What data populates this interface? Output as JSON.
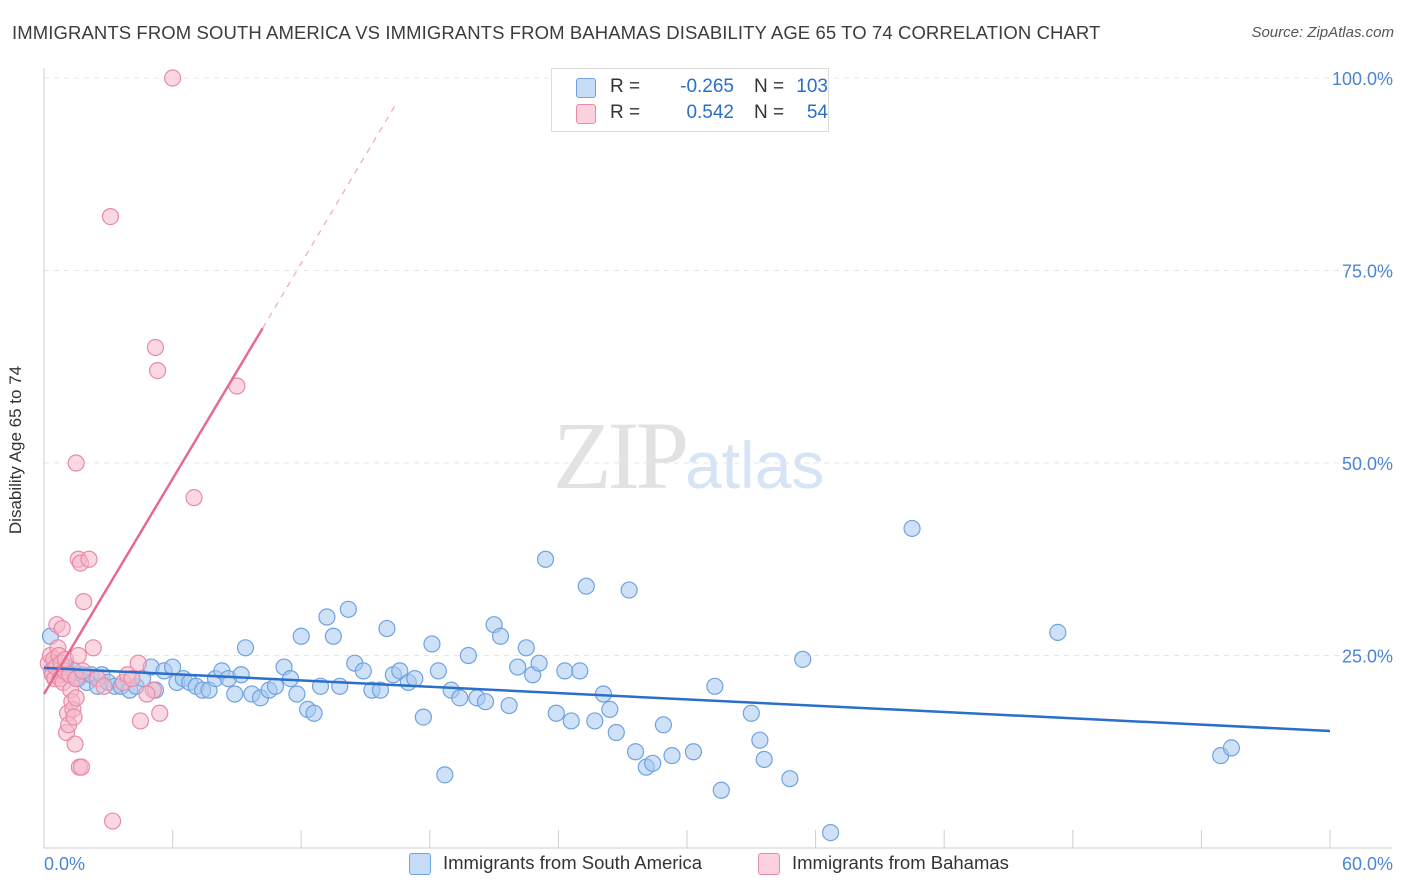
{
  "title": "IMMIGRANTS FROM SOUTH AMERICA VS IMMIGRANTS FROM BAHAMAS DISABILITY AGE 65 TO 74 CORRELATION CHART",
  "source": "Source: ZipAtlas.com",
  "watermark": {
    "zip": "ZIP",
    "atlas": "atlas"
  },
  "legend": {
    "rows": [
      {
        "r_label": "R =",
        "r_value": "-0.265",
        "n_label": "N =",
        "n_value": "103",
        "color": "#a8c8f0"
      },
      {
        "r_label": "R =",
        "r_value": "0.542",
        "n_label": "N =",
        "n_value": "54",
        "color": "#f5b8c8"
      }
    ]
  },
  "bottom_legend": [
    {
      "label": "Immigrants from South America",
      "color": "#a8c8f0"
    },
    {
      "label": "Immigrants from Bahamas",
      "color": "#f5b8c8"
    }
  ],
  "chart_data": {
    "type": "scatter",
    "title": "IMMIGRANTS FROM SOUTH AMERICA VS IMMIGRANTS FROM BAHAMAS DISABILITY AGE 65 TO 74 CORRELATION CHART",
    "xlabel": "",
    "ylabel": "Disability Age 65 to 74",
    "xlim": [
      0,
      60
    ],
    "ylim": [
      0,
      100
    ],
    "x_tick_labels": [
      "0.0%",
      "60.0%"
    ],
    "y_tick_labels": [
      "25.0%",
      "50.0%",
      "75.0%",
      "100.0%"
    ],
    "y_ticks": [
      25,
      50,
      75,
      100
    ],
    "grid": true,
    "series": [
      {
        "name": "Immigrants from South America",
        "color": "#6fa3e0",
        "fill": "#a8c8f0",
        "trend": {
          "x": [
            0,
            60
          ],
          "y": [
            23.4,
            15.2
          ],
          "color": "#2a6fc9"
        },
        "points": [
          [
            0.3,
            27.5
          ],
          [
            0.5,
            24
          ],
          [
            0.8,
            22.5
          ],
          [
            1,
            23.5
          ],
          [
            1.2,
            22.5
          ],
          [
            1.4,
            23
          ],
          [
            1.6,
            22
          ],
          [
            1.8,
            22.5
          ],
          [
            2,
            21.5
          ],
          [
            2.2,
            22.5
          ],
          [
            2.5,
            21
          ],
          [
            2.7,
            22.5
          ],
          [
            3,
            21.5
          ],
          [
            3.3,
            21
          ],
          [
            3.6,
            21
          ],
          [
            4,
            20.5
          ],
          [
            4.3,
            21
          ],
          [
            4.6,
            22
          ],
          [
            5,
            23.5
          ],
          [
            5.2,
            20.5
          ],
          [
            5.6,
            23
          ],
          [
            6,
            23.5
          ],
          [
            6.2,
            21.5
          ],
          [
            6.5,
            22
          ],
          [
            6.8,
            21.5
          ],
          [
            7.1,
            21
          ],
          [
            7.4,
            20.5
          ],
          [
            7.7,
            20.5
          ],
          [
            8,
            22
          ],
          [
            8.3,
            23
          ],
          [
            8.6,
            22
          ],
          [
            8.9,
            20
          ],
          [
            9.2,
            22.5
          ],
          [
            9.4,
            26
          ],
          [
            9.7,
            20
          ],
          [
            10.1,
            19.5
          ],
          [
            10.5,
            20.5
          ],
          [
            10.8,
            21
          ],
          [
            11.2,
            23.5
          ],
          [
            11.5,
            22
          ],
          [
            11.8,
            20
          ],
          [
            12,
            27.5
          ],
          [
            12.3,
            18
          ],
          [
            12.6,
            17.5
          ],
          [
            12.9,
            21
          ],
          [
            13.2,
            30
          ],
          [
            13.5,
            27.5
          ],
          [
            13.8,
            21
          ],
          [
            14.2,
            31
          ],
          [
            14.5,
            24
          ],
          [
            14.9,
            23
          ],
          [
            15.3,
            20.5
          ],
          [
            15.7,
            20.5
          ],
          [
            16,
            28.5
          ],
          [
            16.3,
            22.5
          ],
          [
            16.6,
            23
          ],
          [
            17,
            21.5
          ],
          [
            17.3,
            22
          ],
          [
            17.7,
            17
          ],
          [
            18.1,
            26.5
          ],
          [
            18.4,
            23
          ],
          [
            18.7,
            9.5
          ],
          [
            19,
            20.5
          ],
          [
            19.4,
            19.5
          ],
          [
            19.8,
            25
          ],
          [
            20.2,
            19.5
          ],
          [
            20.6,
            19
          ],
          [
            21,
            29
          ],
          [
            21.3,
            27.5
          ],
          [
            21.7,
            18.5
          ],
          [
            22.1,
            23.5
          ],
          [
            22.5,
            26
          ],
          [
            22.8,
            22.5
          ],
          [
            23.1,
            24
          ],
          [
            23.4,
            37.5
          ],
          [
            23.9,
            17.5
          ],
          [
            24.3,
            23
          ],
          [
            24.6,
            16.5
          ],
          [
            25,
            23
          ],
          [
            25.3,
            34
          ],
          [
            25.7,
            16.5
          ],
          [
            26.1,
            20
          ],
          [
            26.4,
            18
          ],
          [
            26.7,
            15
          ],
          [
            27.3,
            33.5
          ],
          [
            27.6,
            12.5
          ],
          [
            28.1,
            10.5
          ],
          [
            28.4,
            11
          ],
          [
            28.9,
            16
          ],
          [
            29.3,
            12
          ],
          [
            30.3,
            12.5
          ],
          [
            31.3,
            21
          ],
          [
            31.6,
            7.5
          ],
          [
            33,
            17.5
          ],
          [
            33.4,
            14
          ],
          [
            33.6,
            11.5
          ],
          [
            34.8,
            9
          ],
          [
            35.4,
            24.5
          ],
          [
            36.7,
            2
          ],
          [
            40.5,
            41.5
          ],
          [
            47.3,
            28
          ],
          [
            54.9,
            12
          ],
          [
            55.4,
            13
          ]
        ]
      },
      {
        "name": "Immigrants from Bahamas",
        "color": "#e98aa6",
        "fill": "#f5b8c8",
        "trend": {
          "x": [
            0,
            10.2
          ],
          "y": [
            20,
            67.5
          ],
          "color": "#e46b94",
          "dashed_to": {
            "x": 16.5,
            "y": 97
          }
        },
        "points": [
          [
            0.2,
            24
          ],
          [
            0.3,
            25
          ],
          [
            0.35,
            23
          ],
          [
            0.4,
            22.5
          ],
          [
            0.45,
            24.5
          ],
          [
            0.5,
            22
          ],
          [
            0.55,
            23.5
          ],
          [
            0.6,
            29
          ],
          [
            0.65,
            26
          ],
          [
            0.7,
            25
          ],
          [
            0.75,
            22
          ],
          [
            0.8,
            24
          ],
          [
            0.85,
            28.5
          ],
          [
            0.9,
            21.5
          ],
          [
            0.95,
            23
          ],
          [
            1,
            24.5
          ],
          [
            1.05,
            15
          ],
          [
            1.1,
            17.5
          ],
          [
            1.15,
            16
          ],
          [
            1.2,
            22.5
          ],
          [
            1.25,
            20.5
          ],
          [
            1.3,
            19
          ],
          [
            1.35,
            18
          ],
          [
            1.4,
            17
          ],
          [
            1.45,
            13.5
          ],
          [
            1.5,
            19.5
          ],
          [
            1.5,
            22
          ],
          [
            1.6,
            25
          ],
          [
            1.65,
            10.5
          ],
          [
            1.75,
            10.5
          ],
          [
            1.5,
            50
          ],
          [
            1.6,
            37.5
          ],
          [
            1.7,
            37
          ],
          [
            1.8,
            23
          ],
          [
            1.85,
            32
          ],
          [
            2.1,
            37.5
          ],
          [
            2.3,
            26
          ],
          [
            2.5,
            22
          ],
          [
            3.1,
            82
          ],
          [
            3.2,
            3.5
          ],
          [
            3.7,
            21.5
          ],
          [
            3.9,
            22.5
          ],
          [
            4.1,
            22
          ],
          [
            4.4,
            24
          ],
          [
            4.5,
            16.5
          ],
          [
            5.1,
            20.5
          ],
          [
            5.2,
            65
          ],
          [
            5.3,
            62
          ],
          [
            5.4,
            17.5
          ],
          [
            6,
            100
          ],
          [
            7,
            45.5
          ],
          [
            9,
            60
          ],
          [
            4.8,
            20
          ],
          [
            2.8,
            21
          ]
        ]
      }
    ]
  }
}
